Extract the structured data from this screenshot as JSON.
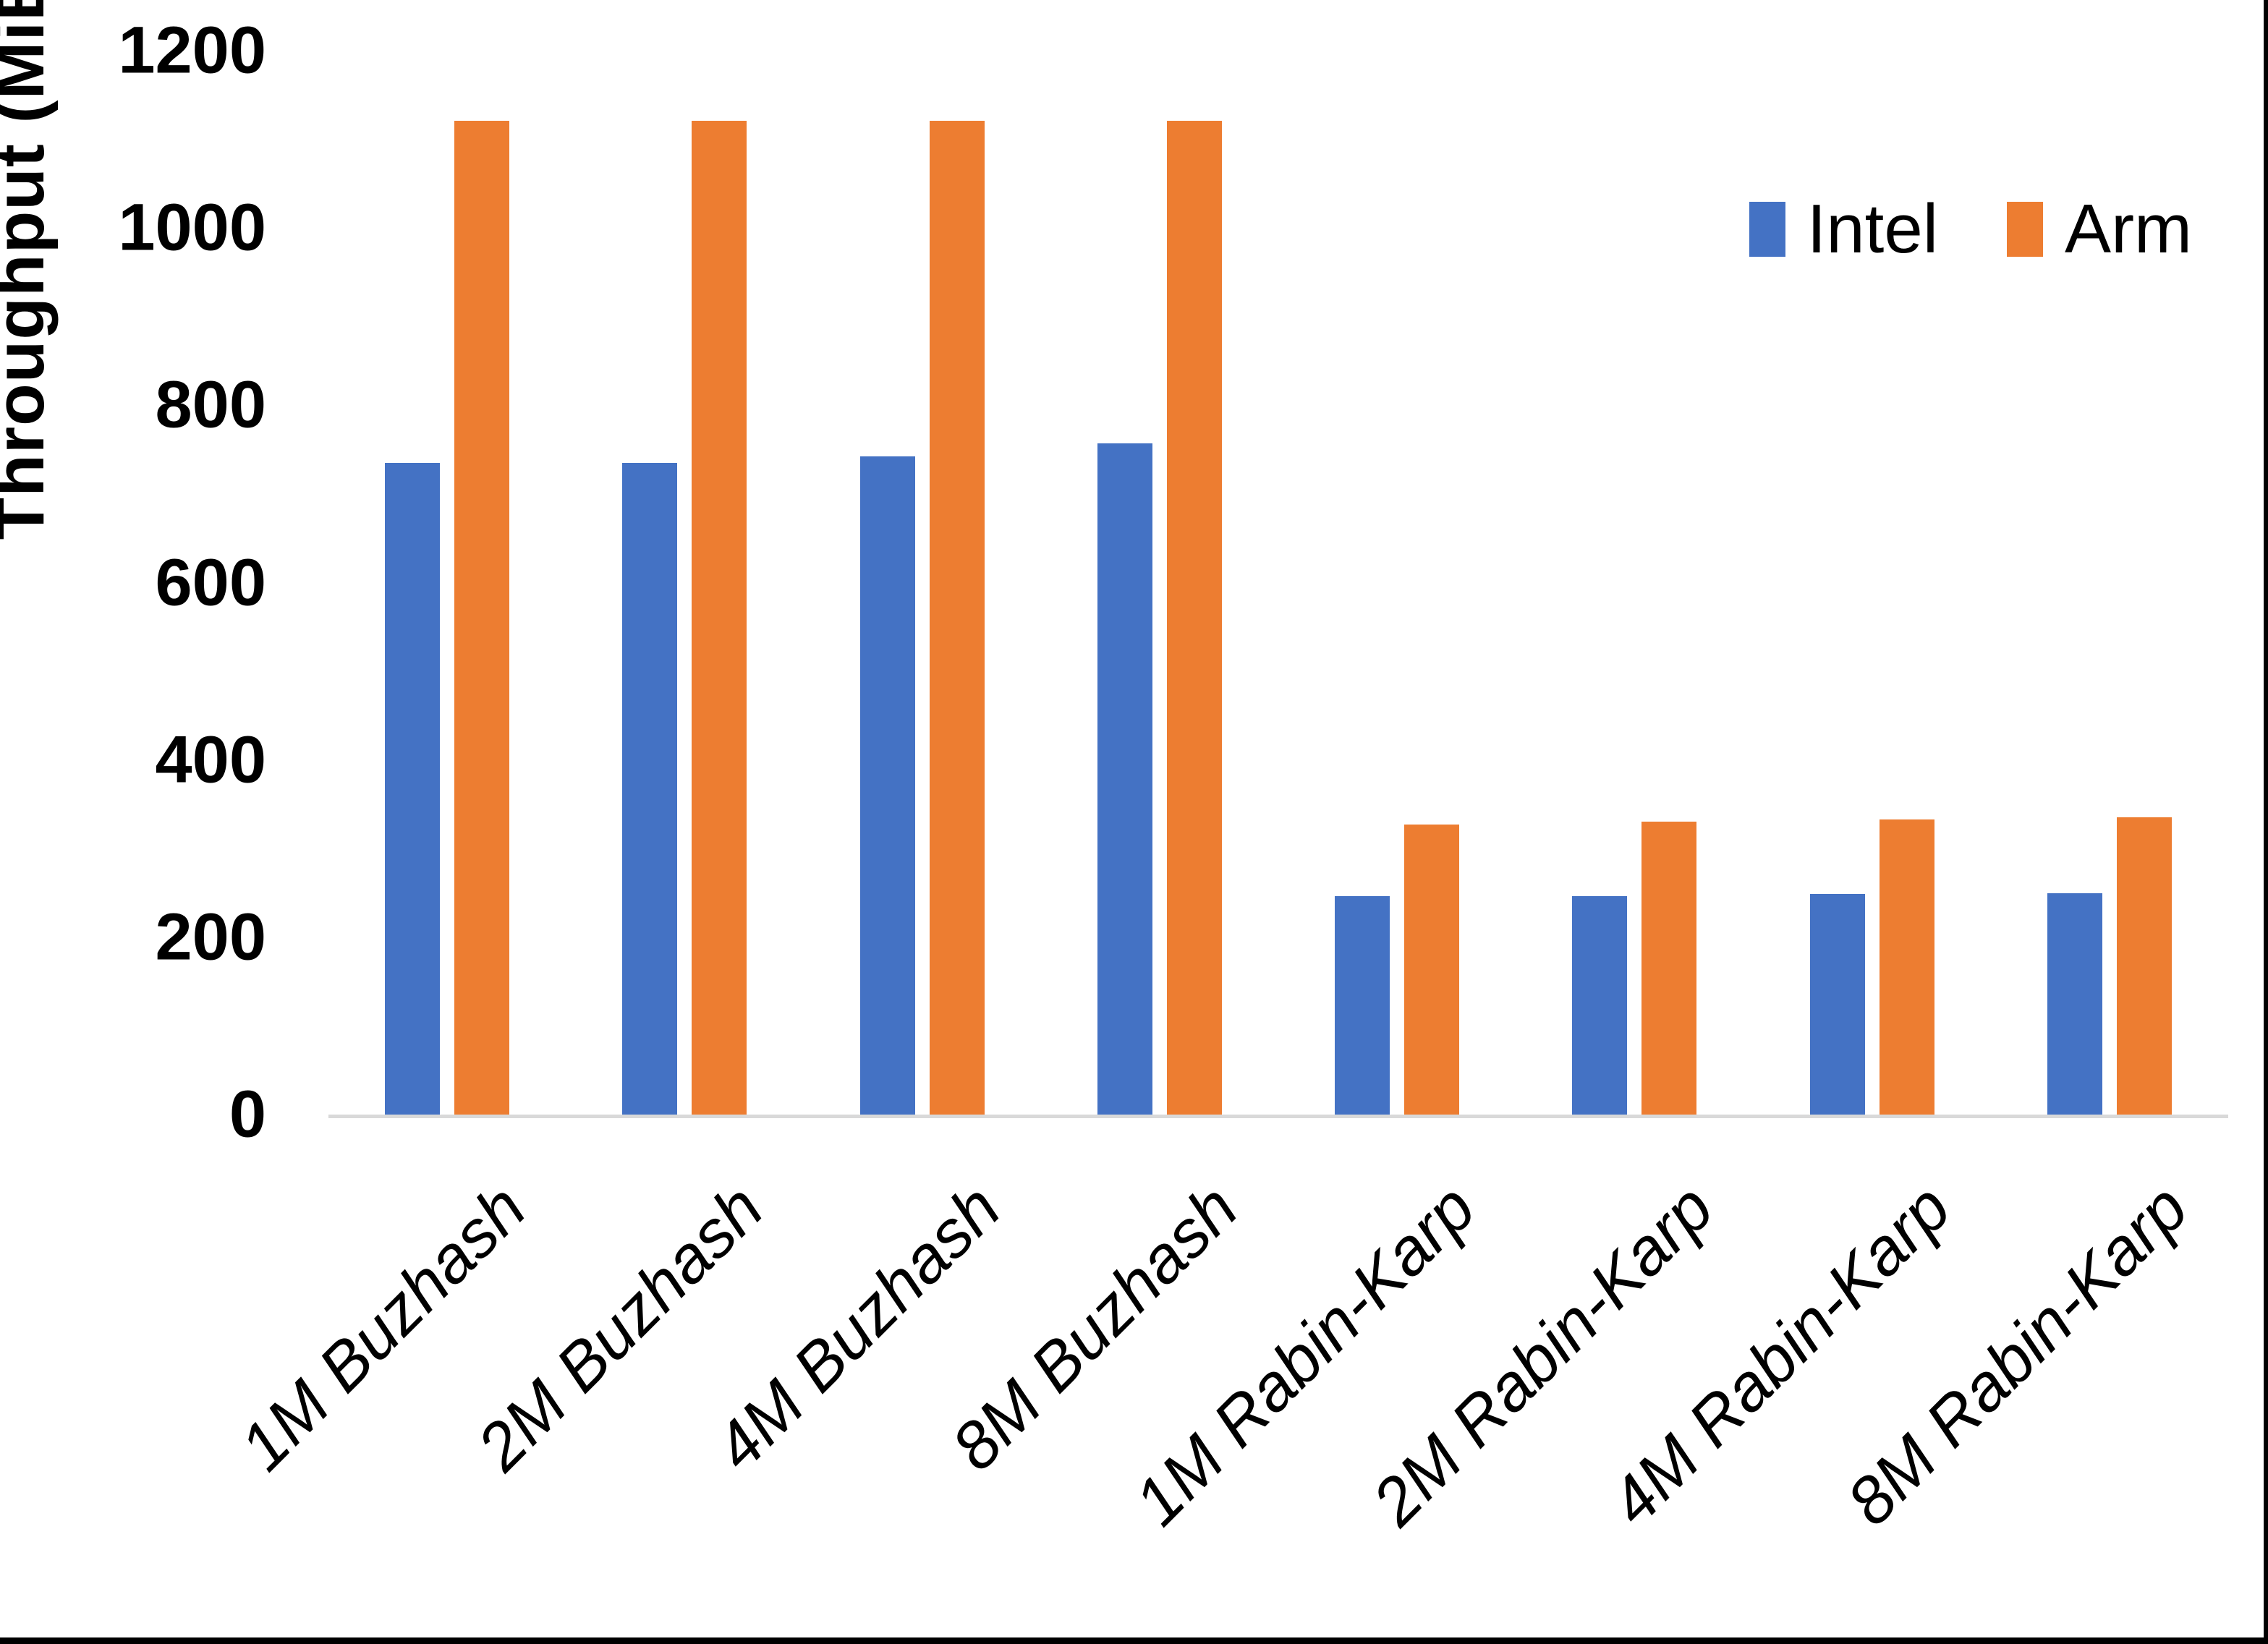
{
  "chart_data": {
    "type": "bar",
    "title": "",
    "xlabel": "",
    "ylabel": "Throughput (MiB/s)",
    "ylim": [
      0,
      1200
    ],
    "yticks": [
      0,
      200,
      400,
      600,
      800,
      1000,
      1200
    ],
    "grid": false,
    "legend_position": "top-right",
    "categories": [
      "1M Buzhash",
      "2M Buzhash",
      "4M Buzhash",
      "8M Buzhash",
      "1M Rabin-Karp",
      "2M Rabin-Karp",
      "4M Rabin-Karp",
      "8M Rabin-Karp"
    ],
    "series": [
      {
        "name": "Intel",
        "color": "#4472C4",
        "values": [
          735,
          735,
          742,
          757,
          246,
          246,
          249,
          250
        ]
      },
      {
        "name": "Arm",
        "color": "#ED7D31",
        "values": [
          1121,
          1121,
          1121,
          1121,
          327,
          330,
          333,
          335
        ]
      }
    ],
    "axis_line_color": "#D9D9D9"
  }
}
